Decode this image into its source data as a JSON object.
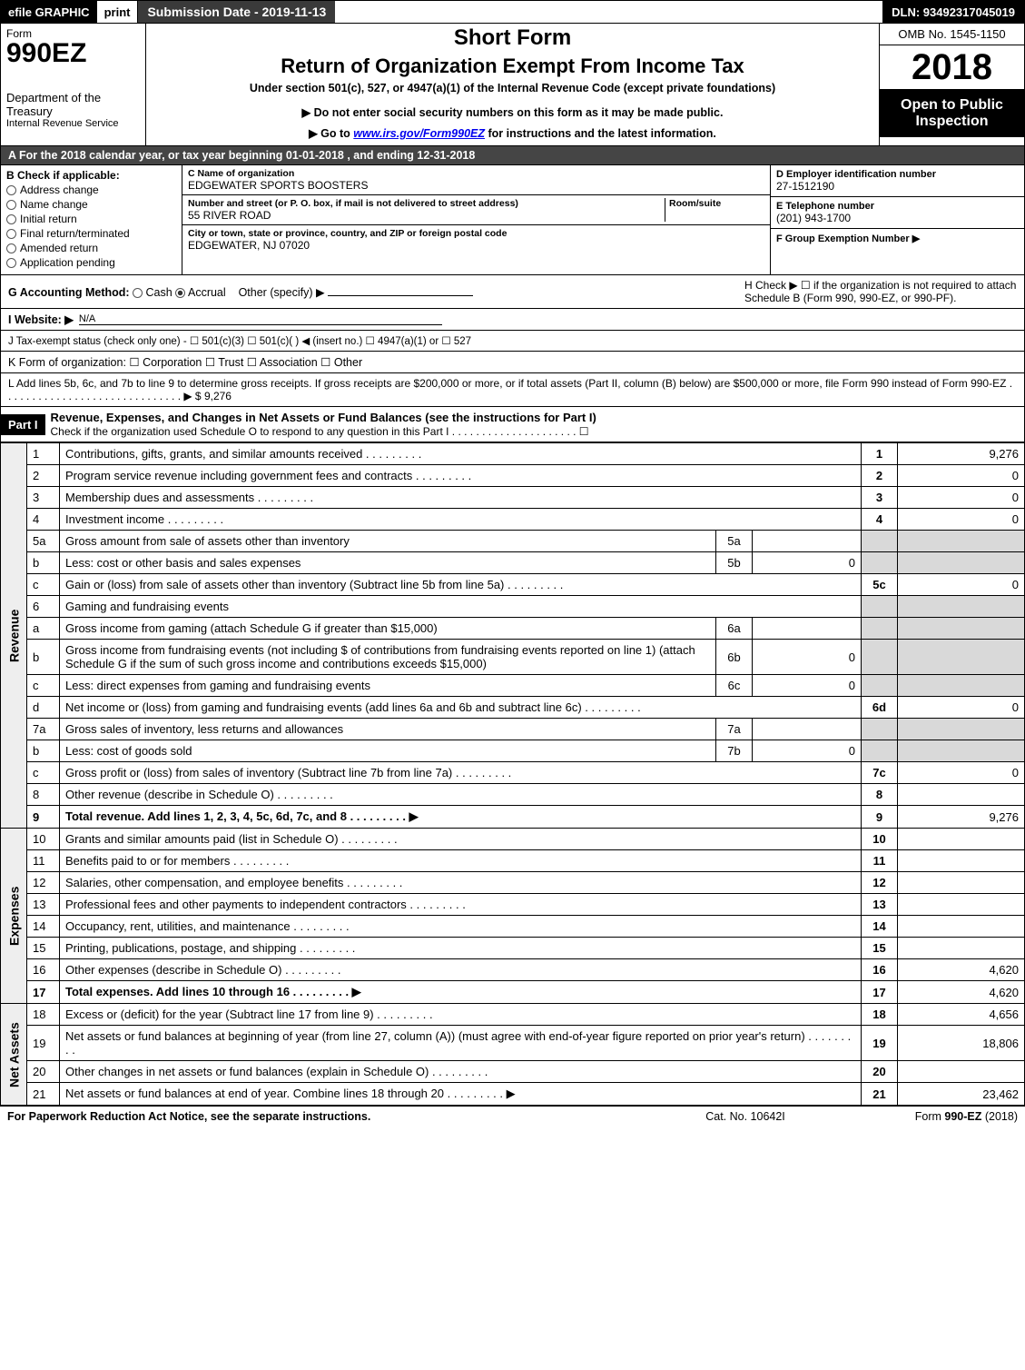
{
  "topbar": {
    "efile": "efile GRAPHIC",
    "print": "print",
    "subdate_label": "Submission Date - 2019-11-13",
    "dln": "DLN: 93492317045019"
  },
  "header": {
    "form_label": "Form",
    "form_no": "990EZ",
    "dept": "Department of the Treasury",
    "irs": "Internal Revenue Service",
    "short_form": "Short Form",
    "title": "Return of Organization Exempt From Income Tax",
    "subtitle": "Under section 501(c), 527, or 4947(a)(1) of the Internal Revenue Code (except private foundations)",
    "public_notice": "▶ Do not enter social security numbers on this form as it may be made public.",
    "goto_pre": "▶ Go to ",
    "goto_link": "www.irs.gov/Form990EZ",
    "goto_post": " for instructions and the latest information.",
    "omb": "OMB No. 1545-1150",
    "year": "2018",
    "open": "Open to Public Inspection"
  },
  "period": "A  For the 2018 calendar year, or tax year beginning 01-01-2018        , and ending 12-31-2018",
  "sectionB": {
    "heading": "B  Check if applicable:",
    "items": [
      "Address change",
      "Name change",
      "Initial return",
      "Final return/terminated",
      "Amended return",
      "Application pending"
    ]
  },
  "sectionC": {
    "name_lbl": "C Name of organization",
    "name": "EDGEWATER SPORTS BOOSTERS",
    "addr_lbl": "Number and street (or P. O. box, if mail is not delivered to street address)",
    "room_lbl": "Room/suite",
    "addr": "55 RIVER ROAD",
    "city_lbl": "City or town, state or province, country, and ZIP or foreign postal code",
    "city": "EDGEWATER, NJ  07020"
  },
  "sectionD": {
    "lbl": "D Employer identification number",
    "val": "27-1512190"
  },
  "sectionE": {
    "lbl": "E Telephone number",
    "val": "(201) 943-1700"
  },
  "sectionF": {
    "lbl": "F Group Exemption Number   ▶",
    "val": ""
  },
  "lineG": {
    "label": "G Accounting Method:",
    "cash": "Cash",
    "accrual": "Accrual",
    "other": "Other (specify) ▶"
  },
  "lineH": "H   Check ▶ ☐ if the organization is not required to attach Schedule B (Form 990, 990-EZ, or 990-PF).",
  "lineI": {
    "label": "I Website: ▶",
    "val": "N/A"
  },
  "lineJ": "J Tax-exempt status (check only one) - ☐ 501(c)(3)  ☐ 501(c)(  ) ◀ (insert no.)  ☐ 4947(a)(1) or  ☐ 527",
  "lineK": "K Form of organization:   ☐ Corporation   ☐ Trust   ☐ Association   ☐ Other",
  "lineL": "L Add lines 5b, 6c, and 7b to line 9 to determine gross receipts. If gross receipts are $200,000 or more, or if total assets (Part II, column (B) below) are $500,000 or more, file Form 990 instead of Form 990-EZ  . . . . . . . . . . . . . . . . . . . . . . . . . . . . . . ▶ $ 9,276",
  "part1": {
    "label": "Part I",
    "title": "Revenue, Expenses, and Changes in Net Assets or Fund Balances (see the instructions for Part I)",
    "check": "Check if the organization used Schedule O to respond to any question in this Part I . . . . . . . . . . . . . . . . . . . . . ☐"
  },
  "sections": {
    "revenue": "Revenue",
    "expenses": "Expenses",
    "netassets": "Net Assets"
  },
  "rows": [
    {
      "n": "1",
      "d": "Contributions, gifts, grants, and similar amounts received",
      "rn": "1",
      "amt": "9,276"
    },
    {
      "n": "2",
      "d": "Program service revenue including government fees and contracts",
      "rn": "2",
      "amt": "0"
    },
    {
      "n": "3",
      "d": "Membership dues and assessments",
      "rn": "3",
      "amt": "0"
    },
    {
      "n": "4",
      "d": "Investment income",
      "rn": "4",
      "amt": "0"
    },
    {
      "n": "5a",
      "d": "Gross amount from sale of assets other than inventory",
      "sub": "5a",
      "subamt": ""
    },
    {
      "n": "b",
      "d": "Less: cost or other basis and sales expenses",
      "sub": "5b",
      "subamt": "0"
    },
    {
      "n": "c",
      "d": "Gain or (loss) from sale of assets other than inventory (Subtract line 5b from line 5a)",
      "rn": "5c",
      "amt": "0"
    },
    {
      "n": "6",
      "d": "Gaming and fundraising events"
    },
    {
      "n": "a",
      "d": "Gross income from gaming (attach Schedule G if greater than $15,000)",
      "sub": "6a",
      "subamt": ""
    },
    {
      "n": "b",
      "d": "Gross income from fundraising events (not including $                of contributions from fundraising events reported on line 1) (attach Schedule G if the sum of such gross income and contributions exceeds $15,000)",
      "sub": "6b",
      "subamt": "0"
    },
    {
      "n": "c",
      "d": "Less: direct expenses from gaming and fundraising events",
      "sub": "6c",
      "subamt": "0"
    },
    {
      "n": "d",
      "d": "Net income or (loss) from gaming and fundraising events (add lines 6a and 6b and subtract line 6c)",
      "rn": "6d",
      "amt": "0"
    },
    {
      "n": "7a",
      "d": "Gross sales of inventory, less returns and allowances",
      "sub": "7a",
      "subamt": ""
    },
    {
      "n": "b",
      "d": "Less: cost of goods sold",
      "sub": "7b",
      "subamt": "0"
    },
    {
      "n": "c",
      "d": "Gross profit or (loss) from sales of inventory (Subtract line 7b from line 7a)",
      "rn": "7c",
      "amt": "0"
    },
    {
      "n": "8",
      "d": "Other revenue (describe in Schedule O)",
      "rn": "8",
      "amt": ""
    },
    {
      "n": "9",
      "d": "Total revenue. Add lines 1, 2, 3, 4, 5c, 6d, 7c, and 8",
      "rn": "9",
      "amt": "9,276",
      "bold": true,
      "arrow": true
    }
  ],
  "exp_rows": [
    {
      "n": "10",
      "d": "Grants and similar amounts paid (list in Schedule O)",
      "rn": "10",
      "amt": ""
    },
    {
      "n": "11",
      "d": "Benefits paid to or for members",
      "rn": "11",
      "amt": ""
    },
    {
      "n": "12",
      "d": "Salaries, other compensation, and employee benefits",
      "rn": "12",
      "amt": ""
    },
    {
      "n": "13",
      "d": "Professional fees and other payments to independent contractors",
      "rn": "13",
      "amt": ""
    },
    {
      "n": "14",
      "d": "Occupancy, rent, utilities, and maintenance",
      "rn": "14",
      "amt": ""
    },
    {
      "n": "15",
      "d": "Printing, publications, postage, and shipping",
      "rn": "15",
      "amt": ""
    },
    {
      "n": "16",
      "d": "Other expenses (describe in Schedule O)",
      "rn": "16",
      "amt": "4,620"
    },
    {
      "n": "17",
      "d": "Total expenses. Add lines 10 through 16",
      "rn": "17",
      "amt": "4,620",
      "bold": true,
      "arrow": true
    }
  ],
  "na_rows": [
    {
      "n": "18",
      "d": "Excess or (deficit) for the year (Subtract line 17 from line 9)",
      "rn": "18",
      "amt": "4,656"
    },
    {
      "n": "19",
      "d": "Net assets or fund balances at beginning of year (from line 27, column (A)) (must agree with end-of-year figure reported on prior year's return)",
      "rn": "19",
      "amt": "18,806"
    },
    {
      "n": "20",
      "d": "Other changes in net assets or fund balances (explain in Schedule O)",
      "rn": "20",
      "amt": ""
    },
    {
      "n": "21",
      "d": "Net assets or fund balances at end of year. Combine lines 18 through 20",
      "rn": "21",
      "amt": "23,462",
      "arrow": true
    }
  ],
  "footer": {
    "left": "For Paperwork Reduction Act Notice, see the separate instructions.",
    "center": "Cat. No. 10642I",
    "right": "Form 990-EZ (2018)"
  }
}
